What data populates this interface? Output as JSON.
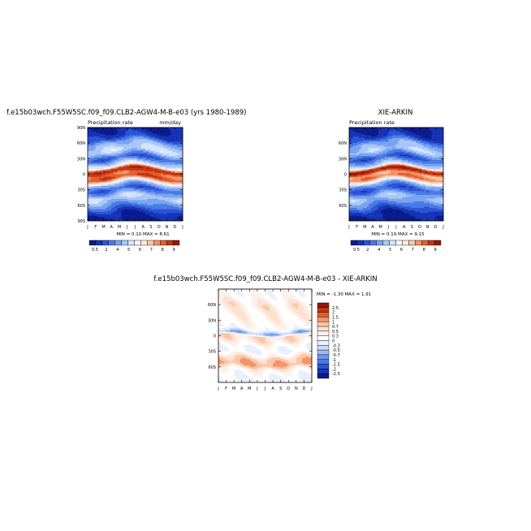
{
  "panels": {
    "model": {
      "title": "f.e15b03wch.F55W5SC.f09_f09.CLB2-AGW4-M-B-e03 (yrs 1980-1989)",
      "subtitle_left": "Precipitation rate",
      "subtitle_right": "mm/day",
      "stats": "MIN =   0.10 MAX =    8.61",
      "y_ticks": [
        "90N",
        "60N",
        "30N",
        "0",
        "30S",
        "60S",
        "90S"
      ]
    },
    "obs": {
      "title": "XIE-ARKIN",
      "subtitle_left": "Precipitation rate",
      "stats": "MIN =   0.19 MAX =    9.15",
      "y_ticks": [
        "60N",
        "30N",
        "0",
        "30S",
        "60S"
      ]
    },
    "diff": {
      "title": "f.e15b03wch.F55W5SC.f09_f09.CLB2-AGW4-M-B-e03  -  XIE-ARKIN",
      "stats": "MIN =  -1.30 MAX =    1.91",
      "y_ticks": [
        "60N",
        "30N",
        "0",
        "30S",
        "60S"
      ]
    }
  },
  "x_ticks": [
    "J",
    "F",
    "M",
    "A",
    "M",
    "J",
    "J",
    "A",
    "S",
    "O",
    "N",
    "D",
    "J"
  ],
  "colorbar_main": {
    "labels": [
      "0.5",
      "2",
      "4",
      "5",
      "6",
      "7",
      "8",
      "9"
    ],
    "colors": [
      "#0a1c8c",
      "#1733b4",
      "#2a55d6",
      "#4a7ae6",
      "#7aa3f0",
      "#a9c7f7",
      "#d6e4fb",
      "#f4f7fe",
      "#fde9dd",
      "#fac7a8",
      "#f3946a",
      "#e2602f",
      "#c43515",
      "#941a0a"
    ]
  },
  "colorbar_diff": {
    "labels": [
      "2.5",
      "2",
      "1.5",
      "1",
      "0.7",
      "0.5",
      "0.3",
      "0",
      "-0.3",
      "-0.5",
      "-0.7",
      "-1",
      "-1.5",
      "-2",
      "-2.5"
    ],
    "colors": [
      "#941a0a",
      "#c43515",
      "#e2602f",
      "#f3946a",
      "#fac7a8",
      "#fde2d2",
      "#fdf1ea",
      "#ffffff",
      "#e8f0fd",
      "#c8daf8",
      "#9ebcf2",
      "#6e97ea",
      "#4a7ae6",
      "#2a55d6",
      "#1733b4",
      "#0a1c8c"
    ]
  },
  "chart_data": [
    {
      "type": "heatmap",
      "title": "f.e15b03wch.F55W5SC.f09_f09.CLB2-AGW4-M-B-e03 (yrs 1980-1989)",
      "variable": "Precipitation rate",
      "units": "mm/day",
      "x": [
        "J",
        "F",
        "M",
        "A",
        "M",
        "J",
        "J",
        "A",
        "S",
        "O",
        "N",
        "D",
        "J"
      ],
      "y_range": [
        -90,
        90
      ],
      "min": 0.1,
      "max": 8.61,
      "lat_profile": [
        {
          "lat": 90,
          "value": 0.3
        },
        {
          "lat": 70,
          "value": 1.0
        },
        {
          "lat": 60,
          "value": 2.4
        },
        {
          "lat": 45,
          "value": 3.2
        },
        {
          "lat": 30,
          "value": 1.3
        },
        {
          "lat": 15,
          "value": 3.5
        },
        {
          "lat": 7,
          "value": 7.0
        },
        {
          "lat": 0,
          "value": 5.5
        },
        {
          "lat": -8,
          "value": 6.0
        },
        {
          "lat": -20,
          "value": 2.6
        },
        {
          "lat": -30,
          "value": 1.3
        },
        {
          "lat": -45,
          "value": 3.1
        },
        {
          "lat": -60,
          "value": 2.0
        },
        {
          "lat": -75,
          "value": 0.7
        },
        {
          "lat": -90,
          "value": 0.2
        }
      ]
    },
    {
      "type": "heatmap",
      "title": "XIE-ARKIN",
      "variable": "Precipitation rate",
      "x": [
        "J",
        "F",
        "M",
        "A",
        "M",
        "J",
        "J",
        "A",
        "S",
        "O",
        "N",
        "D",
        "J"
      ],
      "y_range": [
        -90,
        90
      ],
      "min": 0.19,
      "max": 9.15,
      "lat_profile": [
        {
          "lat": 90,
          "value": 0.3
        },
        {
          "lat": 70,
          "value": 0.9
        },
        {
          "lat": 60,
          "value": 2.2
        },
        {
          "lat": 45,
          "value": 2.9
        },
        {
          "lat": 30,
          "value": 1.2
        },
        {
          "lat": 15,
          "value": 3.2
        },
        {
          "lat": 7,
          "value": 7.5
        },
        {
          "lat": 0,
          "value": 5.0
        },
        {
          "lat": -8,
          "value": 5.5
        },
        {
          "lat": -20,
          "value": 2.3
        },
        {
          "lat": -30,
          "value": 1.2
        },
        {
          "lat": -45,
          "value": 2.8
        },
        {
          "lat": -60,
          "value": 1.8
        },
        {
          "lat": -75,
          "value": 0.6
        },
        {
          "lat": -90,
          "value": 0.2
        }
      ]
    },
    {
      "type": "heatmap",
      "title": "f.e15b03wch.F55W5SC.f09_f09.CLB2-AGW4-M-B-e03  -  XIE-ARKIN",
      "x": [
        "J",
        "F",
        "M",
        "A",
        "M",
        "J",
        "J",
        "A",
        "S",
        "O",
        "N",
        "D",
        "J"
      ],
      "y_range": [
        -90,
        90
      ],
      "min": -1.3,
      "max": 1.91,
      "lat_profile": [
        {
          "lat": 75,
          "value": 0.2
        },
        {
          "lat": 60,
          "value": 0.5
        },
        {
          "lat": 45,
          "value": 0.4
        },
        {
          "lat": 30,
          "value": 0.3
        },
        {
          "lat": 15,
          "value": 0.2
        },
        {
          "lat": 5,
          "value": -0.7
        },
        {
          "lat": 0,
          "value": 0.6
        },
        {
          "lat": -10,
          "value": 0.5
        },
        {
          "lat": -20,
          "value": 0.1
        },
        {
          "lat": -30,
          "value": 0.0
        },
        {
          "lat": -45,
          "value": 0.8
        },
        {
          "lat": -55,
          "value": 1.0
        },
        {
          "lat": -65,
          "value": 0.3
        },
        {
          "lat": -80,
          "value": 0.0
        }
      ]
    }
  ]
}
